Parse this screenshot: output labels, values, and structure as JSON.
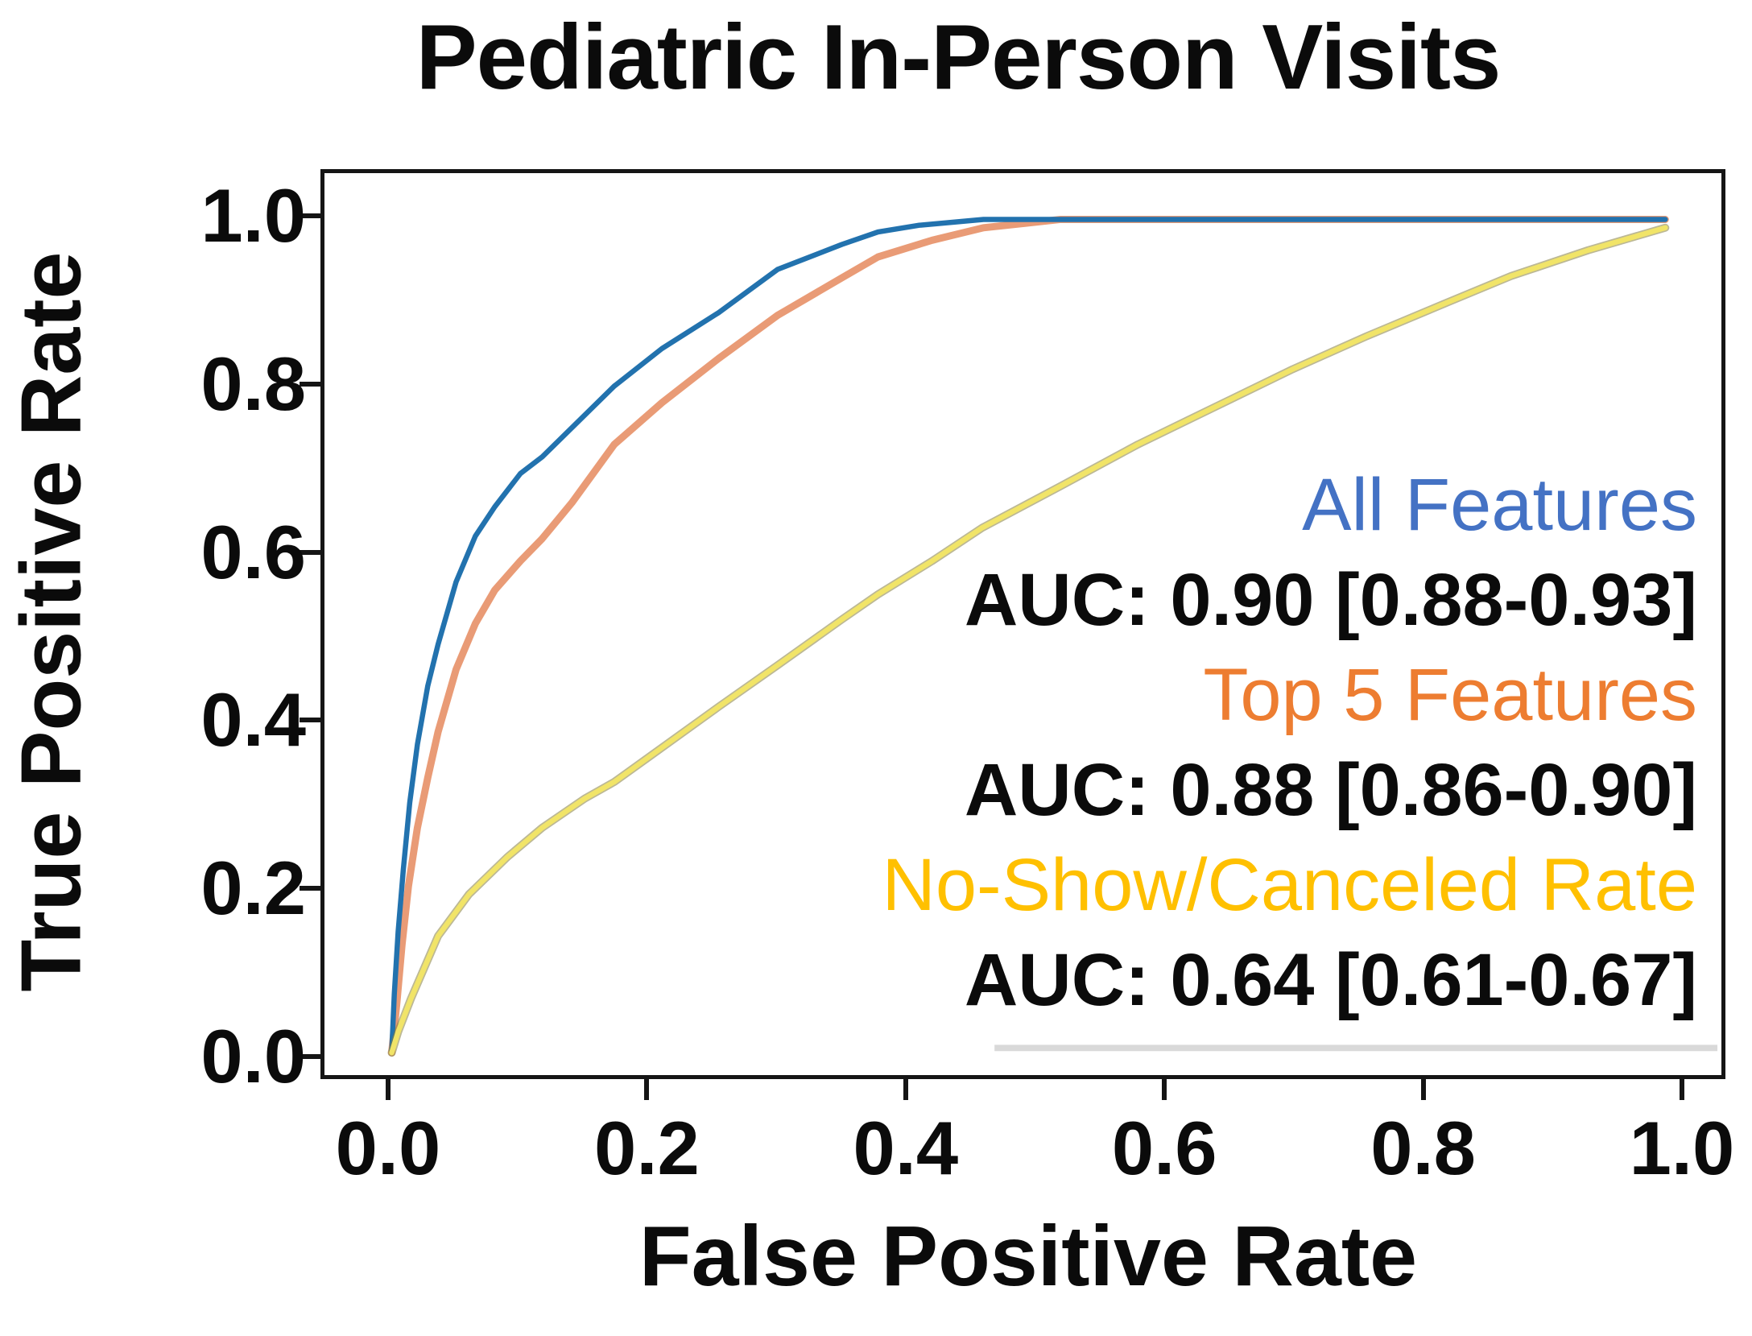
{
  "chart_data": {
    "type": "line",
    "title": "Pediatric In-Person Visits",
    "xlabel": "False Positive Rate",
    "ylabel": "True Positive Rate",
    "xlim": [
      0.0,
      1.0
    ],
    "ylim": [
      0.0,
      1.0
    ],
    "grid": false,
    "legend_position": "lower right, text-only right-aligned",
    "xticks": {
      "values": [
        0.0,
        0.2,
        0.4,
        0.6,
        0.8,
        1.0
      ],
      "labels": [
        "0.0",
        "0.2",
        "0.4",
        "0.6",
        "0.8",
        "1.0"
      ]
    },
    "yticks": {
      "values": [
        0.0,
        0.2,
        0.4,
        0.6,
        0.8,
        1.0
      ],
      "labels": [
        "0.0",
        "0.2",
        "0.4",
        "0.6",
        "0.8",
        "1.0"
      ]
    },
    "series": [
      {
        "name": "All Features",
        "auc_label": "AUC: 0.90 [0.88-0.93]",
        "auc": 0.9,
        "ci_low": 0.88,
        "ci_high": 0.93,
        "curve_color": "#2272ae",
        "legend_text_color": "#4472c4",
        "points": [
          [
            0,
            0
          ],
          [
            0.002,
            0.07
          ],
          [
            0.005,
            0.145
          ],
          [
            0.009,
            0.22
          ],
          [
            0.014,
            0.3
          ],
          [
            0.02,
            0.37
          ],
          [
            0.028,
            0.44
          ],
          [
            0.036,
            0.49
          ],
          [
            0.05,
            0.565
          ],
          [
            0.065,
            0.62
          ],
          [
            0.08,
            0.655
          ],
          [
            0.1,
            0.695
          ],
          [
            0.117,
            0.715
          ],
          [
            0.14,
            0.75
          ],
          [
            0.173,
            0.8
          ],
          [
            0.21,
            0.845
          ],
          [
            0.254,
            0.888
          ],
          [
            0.3,
            0.94
          ],
          [
            0.35,
            0.97
          ],
          [
            0.378,
            0.985
          ],
          [
            0.41,
            0.993
          ],
          [
            0.46,
            1.0
          ],
          [
            0.99,
            1.0
          ]
        ]
      },
      {
        "name": "Top 5 Features",
        "auc_label": "AUC: 0.88 [0.86-0.90]",
        "auc": 0.88,
        "ci_low": 0.86,
        "ci_high": 0.9,
        "curve_color": "#e99b76",
        "legend_text_color": "#ed7d31",
        "points": [
          [
            0,
            0
          ],
          [
            0.004,
            0.06
          ],
          [
            0.008,
            0.13
          ],
          [
            0.013,
            0.2
          ],
          [
            0.02,
            0.27
          ],
          [
            0.028,
            0.33
          ],
          [
            0.036,
            0.385
          ],
          [
            0.05,
            0.46
          ],
          [
            0.065,
            0.515
          ],
          [
            0.08,
            0.555
          ],
          [
            0.1,
            0.59
          ],
          [
            0.117,
            0.617
          ],
          [
            0.14,
            0.66
          ],
          [
            0.173,
            0.73
          ],
          [
            0.21,
            0.78
          ],
          [
            0.254,
            0.833
          ],
          [
            0.3,
            0.885
          ],
          [
            0.35,
            0.93
          ],
          [
            0.378,
            0.955
          ],
          [
            0.42,
            0.975
          ],
          [
            0.46,
            0.99
          ],
          [
            0.52,
            1.0
          ],
          [
            0.99,
            1.0
          ]
        ]
      },
      {
        "name": "No-Show/Canceled Rate",
        "auc_label": "AUC: 0.64 [0.61-0.67]",
        "auc": 0.64,
        "ci_low": 0.61,
        "ci_high": 0.67,
        "curve_color": "#f1e468",
        "curve_edge_color": "#857d3e",
        "legend_text_color": "#ffc000",
        "points": [
          [
            0,
            0
          ],
          [
            0.005,
            0.025
          ],
          [
            0.015,
            0.065
          ],
          [
            0.036,
            0.14
          ],
          [
            0.06,
            0.19
          ],
          [
            0.09,
            0.235
          ],
          [
            0.117,
            0.27
          ],
          [
            0.15,
            0.305
          ],
          [
            0.173,
            0.325
          ],
          [
            0.2,
            0.355
          ],
          [
            0.254,
            0.415
          ],
          [
            0.3,
            0.465
          ],
          [
            0.35,
            0.52
          ],
          [
            0.378,
            0.55
          ],
          [
            0.42,
            0.59
          ],
          [
            0.459,
            0.63
          ],
          [
            0.52,
            0.68
          ],
          [
            0.58,
            0.73
          ],
          [
            0.64,
            0.775
          ],
          [
            0.7,
            0.82
          ],
          [
            0.758,
            0.86
          ],
          [
            0.82,
            0.9
          ],
          [
            0.87,
            0.932
          ],
          [
            0.93,
            0.963
          ],
          [
            0.99,
            0.99
          ]
        ]
      }
    ],
    "annotations": {
      "legend_underline_color": "#d9d9d9",
      "axis_color": "#151515",
      "background_color": "#ffffff"
    }
  }
}
